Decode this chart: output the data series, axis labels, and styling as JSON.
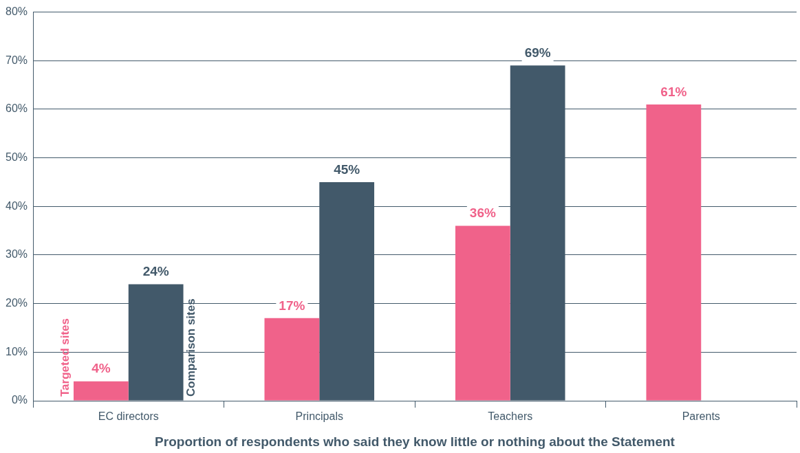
{
  "chart_data": {
    "type": "bar",
    "xlabel": "Proportion of respondents who said they know little or nothing about the Statement",
    "categories": [
      "EC directors",
      "Principals",
      "Teachers",
      "Parents"
    ],
    "series": [
      {
        "name": "Targeted sites",
        "color": "#f0628a",
        "values": [
          4,
          17,
          36,
          61
        ],
        "value_labels": [
          "4%",
          "17%",
          "36%",
          "61%"
        ]
      },
      {
        "name": "Comparison sites",
        "color": "#42596a",
        "values": [
          24,
          45,
          69,
          null
        ],
        "value_labels": [
          "24%",
          "45%",
          "69%",
          null
        ]
      }
    ],
    "ylim": [
      0,
      80
    ],
    "yticks": [
      {
        "value": 0,
        "label": "0%"
      },
      {
        "value": 10,
        "label": "10%"
      },
      {
        "value": 20,
        "label": "20%"
      },
      {
        "value": 30,
        "label": "30%"
      },
      {
        "value": 40,
        "label": "40%"
      },
      {
        "value": 50,
        "label": "50%"
      },
      {
        "value": 60,
        "label": "60%"
      },
      {
        "value": 70,
        "label": "70%"
      },
      {
        "value": 80,
        "label": "80%"
      }
    ],
    "grid": "y",
    "legend": false
  }
}
